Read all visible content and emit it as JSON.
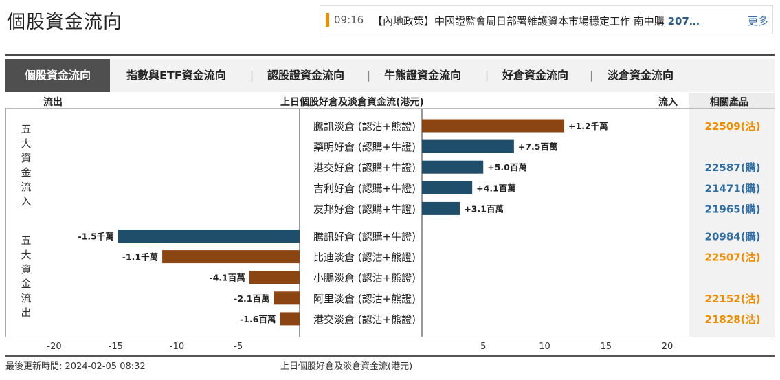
{
  "page_title": "個股資金流向",
  "news": {
    "time": "09:16",
    "text": "【內地政策】中國證監會周日部署維護資本市場穩定工作 南中購",
    "text_tail": "207…",
    "more": "更多"
  },
  "tabs": [
    {
      "label": "個股資金流向",
      "active": true
    },
    {
      "label": "指數與ETF資金流向",
      "active": false
    },
    {
      "label": "認股證資金流向",
      "active": false
    },
    {
      "label": "牛熊證資金流向",
      "active": false
    },
    {
      "label": "好倉資金流向",
      "active": false
    },
    {
      "label": "淡倉資金流向",
      "active": false
    }
  ],
  "tab_separator": "|",
  "header": {
    "outflow": "流出",
    "title": "上日個股好倉及淡倉資金流(港元)",
    "inflow": "流入",
    "related": "相關產品"
  },
  "side_labels": {
    "top": [
      "五",
      "大",
      "資",
      "金",
      "流",
      "入"
    ],
    "bottom": [
      "五",
      "大",
      "資",
      "金",
      "流",
      "出"
    ]
  },
  "colors": {
    "bear": "#8b4513",
    "bull": "#1f4e6b",
    "product_bear": "#f08c00",
    "product_bull": "#2f6da1"
  },
  "chart_data": {
    "type": "bar",
    "orientation": "horizontal",
    "xlim": [
      -20,
      20
    ],
    "xticks": [
      -20,
      -15,
      -10,
      -5,
      5,
      10,
      15,
      20
    ],
    "xtick_labels": [
      "-20",
      "-15",
      "-10",
      "-5",
      "5",
      "10",
      "15",
      "20"
    ],
    "xlabel": "上日個股好倉及淡倉資金流(港元)",
    "rows": [
      {
        "name": "騰訊淡倉 (認沽+熊證)",
        "value": 11.6,
        "label": "+1.2千萬",
        "kind": "bear",
        "product": "22509(沽)"
      },
      {
        "name": "藥明好倉 (認購+牛證)",
        "value": 7.5,
        "label": "+7.5百萬",
        "kind": "bull",
        "product": ""
      },
      {
        "name": "港交好倉 (認購+牛證)",
        "value": 5.0,
        "label": "+5.0百萬",
        "kind": "bull",
        "product": "22587(購)"
      },
      {
        "name": "吉利好倉 (認購+牛證)",
        "value": 4.1,
        "label": "+4.1百萬",
        "kind": "bull",
        "product": "21471(購)"
      },
      {
        "name": "友邦好倉 (認購+牛證)",
        "value": 3.1,
        "label": "+3.1百萬",
        "kind": "bull",
        "product": "21965(購)"
      },
      {
        "name": "騰訊好倉 (認購+牛證)",
        "value": -14.8,
        "label": "-1.5千萬",
        "kind": "bull",
        "product": "20984(購)"
      },
      {
        "name": "比迪淡倉 (認沽+熊證)",
        "value": -11.2,
        "label": "-1.1千萬",
        "kind": "bear",
        "product": "22507(沽)"
      },
      {
        "name": "小鵬淡倉 (認沽+熊證)",
        "value": -4.1,
        "label": "-4.1百萬",
        "kind": "bear",
        "product": ""
      },
      {
        "name": "阿里淡倉 (認沽+熊證)",
        "value": -2.1,
        "label": "-2.1百萬",
        "kind": "bear",
        "product": "22152(沽)"
      },
      {
        "name": "港交淡倉 (認沽+熊證)",
        "value": -1.6,
        "label": "-1.6百萬",
        "kind": "bear",
        "product": "21828(沽)"
      }
    ]
  },
  "footer": {
    "updated": "最後更新時間: 2024-02-05 08:32"
  }
}
